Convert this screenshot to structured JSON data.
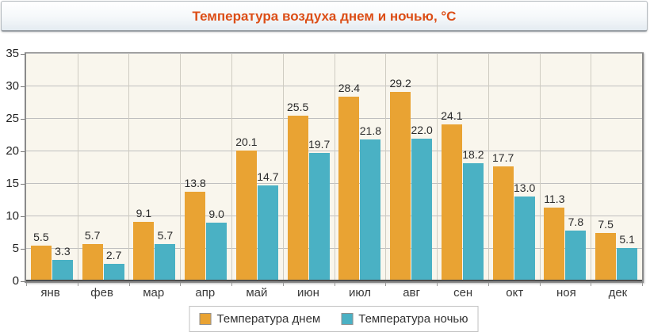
{
  "chart_data": {
    "type": "bar",
    "title": "Температура воздуха днем и ночью, °C",
    "categories": [
      "янв",
      "фев",
      "мар",
      "апр",
      "май",
      "июн",
      "июл",
      "авг",
      "сен",
      "окт",
      "ноя",
      "дек"
    ],
    "series": [
      {
        "name": "Температура днем",
        "color": "#E9A333",
        "values": [
          5.5,
          5.7,
          9.1,
          13.8,
          20.1,
          25.5,
          28.4,
          29.2,
          24.1,
          17.7,
          11.3,
          7.5
        ]
      },
      {
        "name": "Температура ночью",
        "color": "#4AB1C4",
        "values": [
          3.3,
          2.7,
          5.7,
          9.0,
          14.7,
          19.7,
          21.8,
          22.0,
          18.2,
          13.0,
          7.8,
          5.1
        ]
      }
    ],
    "ylim": [
      0,
      35
    ],
    "yticks": [
      0,
      5,
      10,
      15,
      20,
      25,
      30,
      35
    ],
    "value_labels": "one-decimal",
    "grid": true,
    "legend_position": "bottom",
    "colors": {
      "title": "#DC4E17",
      "plot_background": "#F9F6ED",
      "value_label": "#2B2B2B"
    }
  }
}
